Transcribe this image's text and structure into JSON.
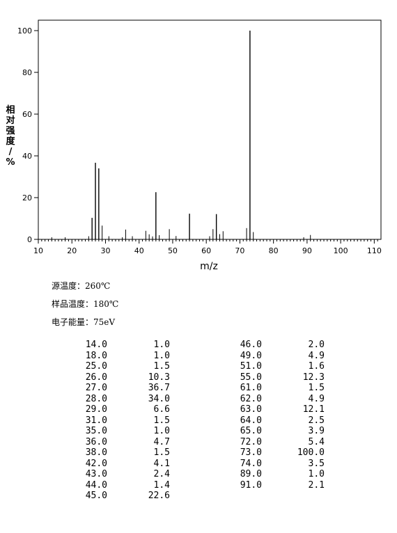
{
  "chart_data": {
    "type": "bar",
    "xlabel": "m/z",
    "ylabel": "相对强度/%",
    "xlim": [
      10,
      112
    ],
    "ylim": [
      0,
      105
    ],
    "xticks": [
      "10",
      "20",
      "30",
      "40",
      "50",
      "60",
      "70",
      "80",
      "90",
      "100",
      "110"
    ],
    "yticks": [
      "0",
      "20",
      "40",
      "60",
      "80",
      "100"
    ],
    "peaks": [
      [
        14.0,
        1.0
      ],
      [
        18.0,
        1.0
      ],
      [
        25.0,
        1.5
      ],
      [
        26.0,
        10.3
      ],
      [
        27.0,
        36.7
      ],
      [
        28.0,
        34.0
      ],
      [
        29.0,
        6.6
      ],
      [
        31.0,
        1.5
      ],
      [
        35.0,
        1.0
      ],
      [
        36.0,
        4.7
      ],
      [
        38.0,
        1.5
      ],
      [
        42.0,
        4.1
      ],
      [
        43.0,
        2.4
      ],
      [
        44.0,
        1.4
      ],
      [
        45.0,
        22.6
      ],
      [
        46.0,
        2.0
      ],
      [
        49.0,
        4.9
      ],
      [
        51.0,
        1.6
      ],
      [
        55.0,
        12.3
      ],
      [
        61.0,
        1.5
      ],
      [
        62.0,
        4.9
      ],
      [
        63.0,
        12.1
      ],
      [
        64.0,
        2.5
      ],
      [
        65.0,
        3.9
      ],
      [
        72.0,
        5.4
      ],
      [
        73.0,
        100.0
      ],
      [
        74.0,
        3.5
      ],
      [
        89.0,
        1.0
      ],
      [
        91.0,
        2.1
      ]
    ]
  },
  "info": {
    "source_temp": "源温度：260℃",
    "sample_temp": "样品温度：180℃",
    "electron_energy": "电子能量：75eV"
  },
  "table_left": [
    [
      "14.0",
      "1.0"
    ],
    [
      "18.0",
      "1.0"
    ],
    [
      "25.0",
      "1.5"
    ],
    [
      "26.0",
      "10.3"
    ],
    [
      "27.0",
      "36.7"
    ],
    [
      "28.0",
      "34.0"
    ],
    [
      "29.0",
      "6.6"
    ],
    [
      "31.0",
      "1.5"
    ],
    [
      "35.0",
      "1.0"
    ],
    [
      "36.0",
      "4.7"
    ],
    [
      "38.0",
      "1.5"
    ],
    [
      "42.0",
      "4.1"
    ],
    [
      "43.0",
      "2.4"
    ],
    [
      "44.0",
      "1.4"
    ],
    [
      "45.0",
      "22.6"
    ]
  ],
  "table_right": [
    [
      "46.0",
      "2.0"
    ],
    [
      "49.0",
      "4.9"
    ],
    [
      "51.0",
      "1.6"
    ],
    [
      "55.0",
      "12.3"
    ],
    [
      "61.0",
      "1.5"
    ],
    [
      "62.0",
      "4.9"
    ],
    [
      "63.0",
      "12.1"
    ],
    [
      "64.0",
      "2.5"
    ],
    [
      "65.0",
      "3.9"
    ],
    [
      "72.0",
      "5.4"
    ],
    [
      "73.0",
      "100.0"
    ],
    [
      "74.0",
      "3.5"
    ],
    [
      "89.0",
      "1.0"
    ],
    [
      "91.0",
      "2.1"
    ]
  ]
}
